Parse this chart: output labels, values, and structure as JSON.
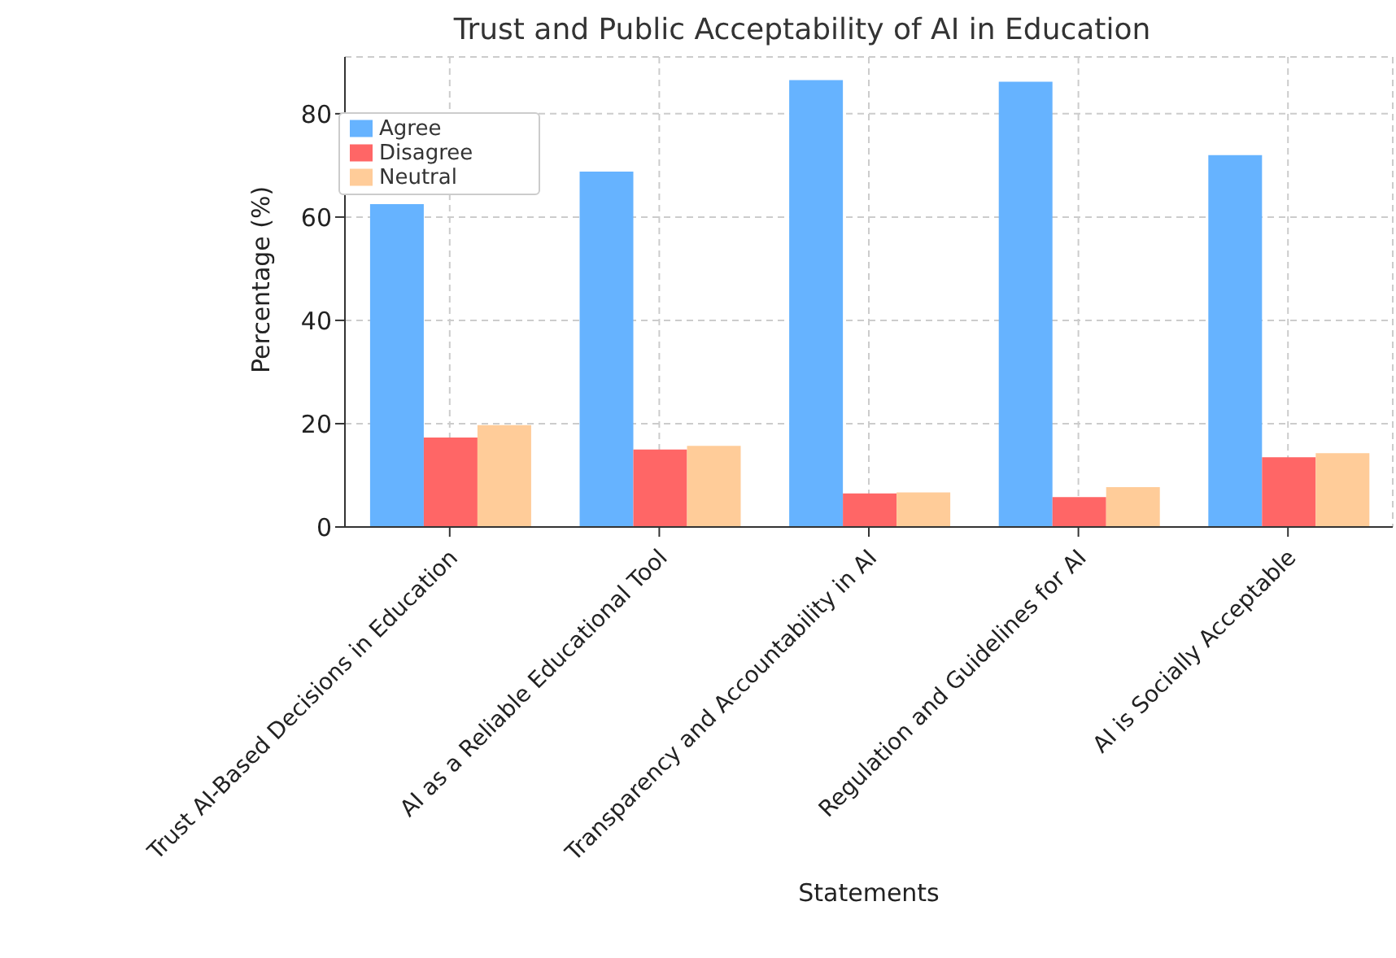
{
  "chart_data": {
    "type": "bar",
    "title": "Trust and Public Acceptability of AI in Education",
    "xlabel": "Statements",
    "ylabel": "Percentage (%)",
    "categories": [
      "Trust AI-Based Decisions in Education",
      "AI as a Reliable Educational Tool",
      "Transparency and Accountability in AI",
      "Regulation and Guidelines for AI",
      "AI is Socially Acceptable"
    ],
    "series": [
      {
        "name": "Agree",
        "color": "#66b3ff",
        "values": [
          62.5,
          68.8,
          86.5,
          86.2,
          72.0
        ]
      },
      {
        "name": "Disagree",
        "color": "#ff6666",
        "values": [
          17.3,
          15.0,
          6.5,
          5.8,
          13.5
        ]
      },
      {
        "name": "Neutral",
        "color": "#ffcc99",
        "values": [
          19.7,
          15.7,
          6.7,
          7.7,
          14.3
        ]
      }
    ],
    "ylim": [
      0,
      91
    ],
    "yticks": [
      0,
      20,
      40,
      60,
      80
    ],
    "grid": true,
    "legend": "top left"
  }
}
